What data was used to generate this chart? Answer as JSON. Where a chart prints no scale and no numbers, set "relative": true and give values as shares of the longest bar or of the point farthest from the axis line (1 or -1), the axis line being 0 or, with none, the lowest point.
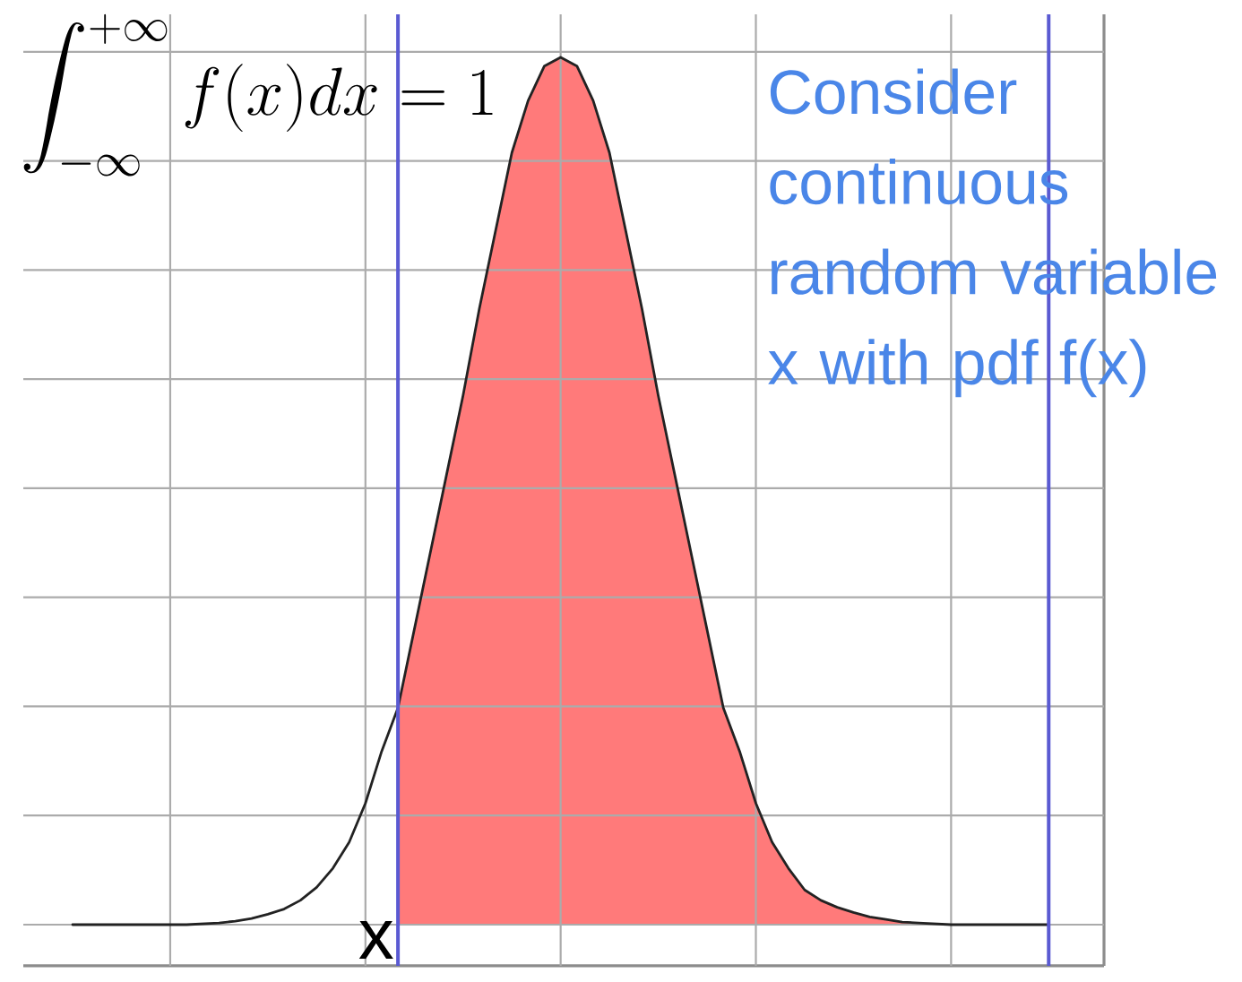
{
  "chart_data": {
    "type": "line",
    "relative": true,
    "grid": true,
    "tick_labels": false,
    "categories": [
      null,
      null,
      null,
      null,
      null,
      null,
      null,
      null,
      null,
      null,
      null,
      null,
      null,
      null,
      null,
      null,
      null,
      null,
      null,
      null,
      null,
      null,
      null,
      null,
      null,
      null,
      null,
      null,
      null,
      null,
      null,
      null,
      null,
      null,
      null,
      null,
      null,
      null,
      null,
      null,
      null,
      null,
      null,
      null,
      null,
      null,
      null,
      null,
      null,
      null,
      null,
      null,
      null,
      null,
      null,
      null,
      null,
      null,
      null,
      null,
      null
    ],
    "series": [
      {
        "type": "area",
        "color": "#ff7a7a",
        "values": [
          null,
          null,
          null,
          null,
          null,
          null,
          null,
          null,
          null,
          null,
          null,
          null,
          null,
          null,
          null,
          null,
          null,
          null,
          null,
          null,
          0.25,
          0.34,
          0.43,
          0.52,
          0.61,
          0.71,
          0.8,
          0.89,
          0.95,
          0.99,
          1,
          0.99,
          0.95,
          0.89,
          0.8,
          0.71,
          0.61,
          0.52,
          0.43,
          0.34,
          0.25,
          0.2,
          0.14,
          0.095,
          0.065,
          0.04,
          0.028,
          0.02,
          0.014,
          0.009,
          0.006,
          0.003,
          0.002,
          0.001,
          0,
          0,
          0,
          0,
          0,
          0,
          0
        ]
      },
      {
        "color": "#222222",
        "values": [
          0,
          0,
          0,
          0,
          0,
          0,
          0,
          0,
          0.001,
          0.002,
          0.004,
          0.007,
          0.012,
          0.018,
          0.028,
          0.043,
          0.065,
          0.095,
          0.14,
          0.2,
          0.25,
          0.34,
          0.43,
          0.52,
          0.61,
          0.71,
          0.8,
          0.89,
          0.95,
          0.99,
          1,
          0.99,
          0.95,
          0.89,
          0.8,
          0.71,
          0.61,
          0.52,
          0.43,
          0.34,
          0.25,
          0.2,
          0.14,
          0.095,
          0.065,
          0.04,
          0.028,
          0.02,
          0.014,
          0.009,
          0.006,
          0.003,
          0.002,
          0.001,
          0,
          0,
          0,
          0,
          0,
          0,
          0
        ]
      }
    ],
    "annotations": [
      "\\int_{-\\infty}^{+\\infty} f(x)dx = 1",
      "Consider continuous random variable x with pdf f(x)",
      "x"
    ]
  }
}
